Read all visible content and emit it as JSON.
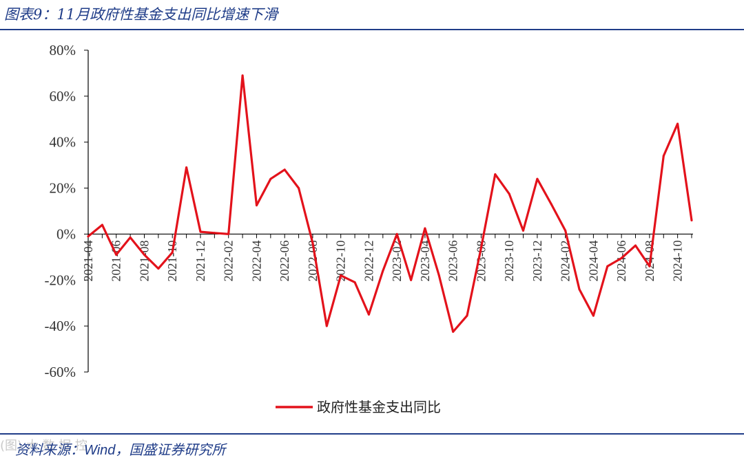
{
  "header": {
    "title": "图表9：11月政府性基金支出同比增速下滑"
  },
  "footer": {
    "source_prefix": "资料来源：",
    "source_wind": "Wind",
    "source_rest": "，国盛证券研究所",
    "watermark": "(图) 大 数 据 控"
  },
  "colors": {
    "accent": "#1f3c88",
    "series": "#e3121b"
  },
  "chart_data": {
    "type": "line",
    "title": "",
    "xlabel": "",
    "ylabel": "",
    "ylim": [
      -60,
      80
    ],
    "yticks": [
      80,
      60,
      40,
      20,
      0,
      -20,
      -40,
      -60
    ],
    "ytick_labels": [
      "80%",
      "60%",
      "40%",
      "20%",
      "0%",
      "-20%",
      "-40%",
      "-60%"
    ],
    "x": [
      "2021-04",
      "2021-05",
      "2021-06",
      "2021-07",
      "2021-08",
      "2021-09",
      "2021-10",
      "2021-11",
      "2021-12",
      "2022-01",
      "2022-02",
      "2022-03",
      "2022-04",
      "2022-05",
      "2022-06",
      "2022-07",
      "2022-08",
      "2022-09",
      "2022-10",
      "2022-11",
      "2022-12",
      "2023-01",
      "2023-02",
      "2023-03",
      "2023-04",
      "2023-05",
      "2023-06",
      "2023-07",
      "2023-08",
      "2023-09",
      "2023-10",
      "2023-11",
      "2023-12",
      "2024-01",
      "2024-02",
      "2024-03",
      "2024-04",
      "2024-05",
      "2024-06",
      "2024-07",
      "2024-08",
      "2024-09",
      "2024-10",
      "2024-11"
    ],
    "xtick_labels": [
      "2021-04",
      "2021-06",
      "2021-08",
      "2021-10",
      "2021-12",
      "2022-02",
      "2022-04",
      "2022-06",
      "2022-08",
      "2022-10",
      "2022-12",
      "2023-02",
      "2023-04",
      "2023-06",
      "2023-08",
      "2023-10",
      "2023-12",
      "2024-02",
      "2024-04",
      "2024-06",
      "2024-08",
      "2024-10"
    ],
    "series": [
      {
        "name": "政府性基金支出同比",
        "color": "#e3121b",
        "values": [
          -1,
          4,
          -9,
          -1.5,
          -9,
          -15,
          -8,
          29,
          1,
          0.5,
          0,
          69,
          12.5,
          24,
          28,
          20,
          -4,
          -40,
          -18,
          -21,
          -35,
          -16,
          0,
          -20,
          2.5,
          -18,
          -42.5,
          -35.5,
          -6,
          26,
          17.5,
          1.5,
          24,
          13,
          1.5,
          -24,
          -35.5,
          -14,
          -10.5,
          -5,
          -14,
          34,
          48,
          6
        ]
      }
    ],
    "legend": "bottom-center",
    "grid": false
  }
}
